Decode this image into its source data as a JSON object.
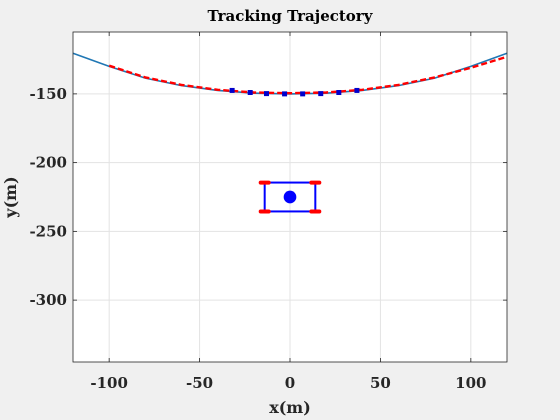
{
  "chart_data": {
    "type": "line",
    "title": "Tracking Trajectory",
    "xlabel": "x(m)",
    "ylabel": "y(m)",
    "xlim": [
      -120,
      120
    ],
    "ylim": [
      -345,
      -105
    ],
    "xticks": [
      -100,
      -50,
      0,
      50,
      100
    ],
    "yticks": [
      -150,
      -200,
      -250,
      -300
    ],
    "grid": true,
    "series": [
      {
        "color": "#1f77b4",
        "style": "solid",
        "x": [
          -120,
          -100,
          -80,
          -60,
          -40,
          -20,
          0,
          20,
          40,
          60,
          80,
          100,
          120
        ],
        "y": [
          -120.5,
          -130,
          -138.5,
          -144,
          -147.5,
          -149.5,
          -150,
          -149.5,
          -147.5,
          -144,
          -138.5,
          -130,
          -120.5
        ]
      },
      {
        "color": "#ff0000",
        "style": "dashed",
        "x": [
          -100,
          -80,
          -60,
          -40,
          -20,
          0,
          20,
          40,
          60,
          80,
          100,
          120
        ],
        "y": [
          -129.5,
          -138,
          -143.5,
          -147,
          -149,
          -149.5,
          -149,
          -147,
          -143.5,
          -138,
          -131,
          -123
        ]
      }
    ],
    "sample_points": {
      "color": "#0000cc",
      "x": [
        -32,
        -22,
        -13,
        -3,
        7,
        17,
        27,
        37
      ],
      "y": [
        -147.5,
        -149,
        -149.8,
        -150,
        -150,
        -149.8,
        -149,
        -147.5
      ]
    },
    "vehicle": {
      "body_color": "#0000ff",
      "wheel_color": "#ff0000",
      "center": [
        0,
        -225
      ],
      "half_width": 14,
      "half_height": 10.5,
      "marker_radius_units": 3.5
    }
  }
}
